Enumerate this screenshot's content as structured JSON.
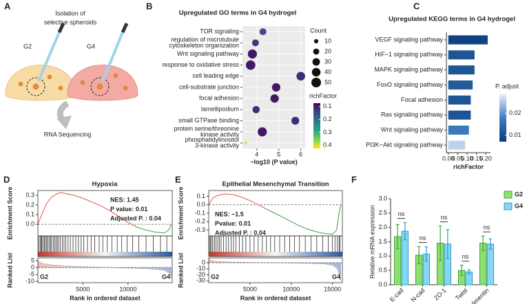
{
  "diagram": {
    "panel": "A",
    "title": [
      "Isolation of",
      "selective spheroids"
    ],
    "groups": [
      "G2",
      "G4"
    ],
    "step": "RNA Sequencing"
  },
  "chart_data": [
    {
      "panel": "B",
      "type": "bubble",
      "title": "Upregulated GO terms in G4 hydrogel",
      "xlabel": "−log10 (P value)",
      "categories": [
        [
          "TOR signaling"
        ],
        [
          "regulation of microtubule",
          "cytoskeleton organization"
        ],
        [
          "Wnt signaling pathway"
        ],
        [
          "response to oxidative stress"
        ],
        [
          "cell leading edge"
        ],
        [
          "cell-substrate junction"
        ],
        [
          "focal adhesion"
        ],
        [
          "lamellipodium"
        ],
        [
          "small GTPase binding"
        ],
        [
          "protein serine/threonine",
          "kinase activity"
        ],
        [
          "phosphatidylinositol",
          "3-kinase activity"
        ]
      ],
      "x": [
        4.28,
        3.94,
        3.8,
        3.72,
        6.0,
        4.88,
        4.81,
        3.97,
        5.75,
        4.25,
        3.5
      ],
      "sizes": [
        25,
        25,
        45,
        48,
        40,
        38,
        38,
        28,
        33,
        45,
        5
      ],
      "color_values": [
        0.15,
        0.13,
        0.1,
        0.1,
        0.12,
        0.1,
        0.1,
        0.12,
        0.12,
        0.1,
        0.42
      ],
      "xlim": [
        3.35,
        6.2
      ],
      "xticks": [
        4,
        5,
        6
      ],
      "grid": true,
      "size_legend": {
        "title": "Count",
        "values": [
          10,
          20,
          30,
          40,
          50
        ]
      },
      "colorbar": {
        "title": "richFactor",
        "lim": [
          0.075,
          0.425
        ],
        "ticks": [
          0.1,
          0.2,
          0.3,
          0.4
        ],
        "colors": [
          "#440154",
          "#414487",
          "#2a788e",
          "#22a884",
          "#7ad151",
          "#fde725"
        ]
      }
    },
    {
      "panel": "C",
      "type": "bar",
      "orientation": "horizontal",
      "title": "Upregulated KEGG terms in G4 hydrogel",
      "xlabel": "richFactor",
      "categories": [
        "VEGF signaling pathway",
        "HIF−1 signaling pathway",
        "MAPK signaling pathway",
        "FoxO signaling pathway",
        "Focal adhesion",
        "Ras signaling pathway",
        "Wnt signaling pathway",
        "PI3K−Akt signaling pathway"
      ],
      "values": [
        0.21,
        0.14,
        0.14,
        0.13,
        0.12,
        0.12,
        0.11,
        0.09
      ],
      "color_values": [
        0.008,
        0.011,
        0.011,
        0.012,
        0.011,
        0.011,
        0.017,
        0.026
      ],
      "xlim": [
        -0.01,
        0.225
      ],
      "xticks": [
        {
          "value": 0,
          "label": "0.00"
        },
        0.05,
        {
          "value": 0.1,
          "label": "0.10"
        },
        0.15,
        {
          "value": 0.2,
          "label": "0.20"
        }
      ],
      "colorbar": {
        "title": "P. adjust",
        "lim": [
          0.007,
          0.029
        ],
        "ticks": [
          0.02,
          0.01
        ],
        "colors": [
          "#0b3d7c",
          "#3f7fc1",
          "#eef3fa"
        ]
      }
    },
    {
      "panel": "D",
      "type": "gsea",
      "title": "Hypoxia",
      "ylabel": "Enrichment Score",
      "xlabel": "Rank in ordered dataset",
      "x": [
        0,
        500,
        1000,
        1500,
        2000,
        2500,
        3000,
        3500,
        4000,
        5000,
        6000,
        7000,
        8000,
        9000,
        10000,
        11000,
        12000,
        13000,
        14000,
        14500,
        14800
      ],
      "values": [
        0,
        0.12,
        0.22,
        0.28,
        0.31,
        0.33,
        0.32,
        0.31,
        0.3,
        0.27,
        0.23,
        0.19,
        0.14,
        0.08,
        0.02,
        -0.03,
        -0.06,
        -0.08,
        -0.09,
        -0.06,
        0
      ],
      "xlim": [
        0,
        14900
      ],
      "xticks": [
        5000,
        10000
      ],
      "ylim": [
        -0.12,
        0.35
      ],
      "yticks": [
        {
          "value": 0,
          "label": "0.0"
        },
        0.1,
        0.2,
        0.3
      ],
      "line_colors": [
        "#e0554f",
        "#3d9e46"
      ],
      "hits": [
        120,
        260,
        380,
        450,
        600,
        720,
        850,
        980,
        1100,
        1250,
        1400,
        1520,
        1700,
        1850,
        2000,
        2150,
        2300,
        2500,
        2700,
        2900,
        3100,
        3350,
        3600,
        3900,
        4200,
        4500,
        4800,
        5100,
        5500,
        5900,
        6300,
        6800,
        7200,
        7700,
        8200,
        8800,
        9300,
        9900,
        10500,
        11200,
        12000,
        12800,
        13600,
        14300
      ],
      "ranked": {
        "ylabel": "Ranked List",
        "x": [
          0,
          500,
          1500,
          3000,
          5000,
          7000,
          9000,
          11000,
          13000,
          14000,
          14600,
          14800
        ],
        "values": [
          5,
          3,
          2,
          1.2,
          0.6,
          0.2,
          -0.2,
          -0.6,
          -1.2,
          -2,
          -4,
          -8
        ],
        "ylim": [
          -11,
          7
        ],
        "yticks": [
          5,
          0,
          -5,
          -10
        ]
      },
      "groups": [
        "G2",
        "G4"
      ],
      "annotations": [
        "NES: 1.45",
        "P value: 0.01",
        "Adjusted P. : 0.04"
      ]
    },
    {
      "panel": "E",
      "type": "gsea",
      "title": "Epithelial Mesenchymal Transition",
      "ylabel": "Enrichment Score",
      "xlabel": "Rank in ordered dataset",
      "x": [
        0,
        500,
        1000,
        2000,
        3000,
        4000,
        5000,
        6000,
        7000,
        8000,
        9000,
        10000,
        11000,
        12000,
        13000,
        14000,
        15000,
        15500,
        15800,
        16000
      ],
      "values": [
        0,
        0.08,
        0.11,
        0.13,
        0.12,
        0.09,
        0.05,
        0.0,
        -0.05,
        -0.1,
        -0.15,
        -0.2,
        -0.25,
        -0.29,
        -0.32,
        -0.34,
        -0.35,
        -0.3,
        -0.1,
        0
      ],
      "xlim": [
        0,
        16200
      ],
      "xticks": [
        5000,
        10000,
        15000
      ],
      "ylim": [
        -0.37,
        0.17
      ],
      "yticks": [
        0.1,
        {
          "value": 0,
          "label": "0.0"
        },
        -0.1,
        -0.2,
        -0.3
      ],
      "line_colors": [
        "#e0554f",
        "#3d9e46"
      ],
      "hits": [
        80,
        200,
        350,
        500,
        700,
        900,
        1100,
        1300,
        1500,
        1800,
        2100,
        2400,
        2700,
        3000,
        3300,
        3700,
        4100,
        4500,
        5000,
        5500,
        6000,
        6500,
        7000,
        7500,
        8000,
        8600,
        9200,
        9800,
        10400,
        11000,
        11700,
        12400,
        13100,
        13800,
        14500,
        15000,
        15300,
        15600,
        15800,
        15900
      ],
      "ranked": {
        "ylabel": "Ranked List",
        "x": [
          0,
          300,
          1000,
          3000,
          6000,
          9000,
          12000,
          14000,
          15000,
          15600,
          16000
        ],
        "values": [
          7,
          4,
          2,
          1,
          0.3,
          -0.3,
          -1,
          -2,
          -4,
          -10,
          -30
        ],
        "ylim": [
          -33,
          8
        ],
        "yticks": [
          0,
          -10,
          -20,
          -30
        ]
      },
      "groups": [
        "G2",
        "G4"
      ],
      "annotations": [
        "NES: −1.5",
        "Pvalue: 0.01",
        "Adjusted P. : 0.04"
      ]
    },
    {
      "panel": "F",
      "type": "bar",
      "ylabel": "Relative mRNA expression",
      "categories": [
        "E-cad",
        "N-cad",
        "ZO-1",
        "Twist",
        "Vimentin"
      ],
      "series": [
        {
          "name": "G2",
          "color": "#8fe06e",
          "edgecolor": "#3aa33a",
          "values": [
            1.68,
            1.03,
            1.45,
            0.5,
            1.45
          ],
          "errors": [
            0.42,
            0.3,
            0.6,
            0.18,
            0.25
          ]
        },
        {
          "name": "G4",
          "color": "#86d7ef",
          "edgecolor": "#2b9fca",
          "values": [
            1.87,
            1.07,
            1.42,
            0.45,
            1.42
          ],
          "errors": [
            0.3,
            0.25,
            0.5,
            0.07,
            0.18
          ]
        }
      ],
      "ylim": [
        0,
        3
      ],
      "yticks": [
        {
          "value": 0,
          "label": "0.0"
        },
        0.5,
        {
          "value": 1,
          "label": "1.0"
        },
        1.5,
        {
          "value": 2,
          "label": "2.0"
        },
        2.5,
        {
          "value": 3,
          "label": "3.0"
        }
      ],
      "annotations": [
        "ns",
        "ns",
        "ns",
        "ns",
        "ns"
      ],
      "legend": "right"
    }
  ]
}
